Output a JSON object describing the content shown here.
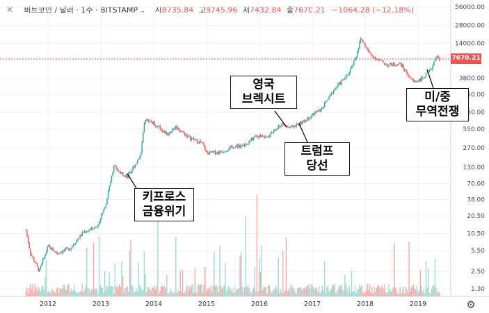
{
  "header": {
    "symbol": "비트코인 / 달러 · 1주 · BITSTAMP",
    "open_label": "시",
    "open": "8735.84",
    "high_label": "고",
    "high": "8745.96",
    "low_label": "저",
    "low": "7432.84",
    "close_label": "종",
    "close": "7670.21",
    "change": "−1064.28 (−12.18%)"
  },
  "colors": {
    "up": "#26a69a",
    "down": "#ef5350",
    "vol_up": "#9fd9d2",
    "vol_down": "#f6a9a7",
    "price_line": "#ef5350"
  },
  "icons": [
    "close-icon",
    "chevron-down-icon",
    "settings-icon"
  ],
  "price_label": "7670.21",
  "annotations": {
    "cyprus": [
      "키프로스",
      "금융위기"
    ],
    "brexit": [
      "영국",
      "브렉시트"
    ],
    "trump": [
      "트럼프",
      "당선"
    ],
    "tradewar": [
      "미/중",
      "무역전쟁"
    ]
  },
  "chart_data": {
    "type": "candlestick",
    "scale": "log",
    "x_labels": [
      "2012",
      "2013",
      "2014",
      "2015",
      "2016",
      "2017",
      "2018",
      "2019"
    ],
    "y_labels": [
      "56000.00",
      "28000.00",
      "14000.00",
      "7670.21",
      "3800.00",
      "2050.00",
      "1050.00",
      "550.00",
      "270.00",
      "130.00",
      "70.00",
      "38.00",
      "20.50",
      "10.50",
      "5.50",
      "2.50",
      "1.30"
    ],
    "price_series": [
      [
        "2011-08",
        12
      ],
      [
        "2011-09",
        5
      ],
      [
        "2011-11",
        2.5
      ],
      [
        "2012-01",
        6.5
      ],
      [
        "2012-03",
        5
      ],
      [
        "2012-06",
        6
      ],
      [
        "2012-09",
        11
      ],
      [
        "2012-12",
        13.5
      ],
      [
        "2013-02",
        30
      ],
      [
        "2013-04",
        140
      ],
      [
        "2013-05",
        110
      ],
      [
        "2013-07",
        90
      ],
      [
        "2013-10",
        200
      ],
      [
        "2013-11",
        800
      ],
      [
        "2013-12",
        750
      ],
      [
        "2014-02",
        600
      ],
      [
        "2014-04",
        450
      ],
      [
        "2014-06",
        600
      ],
      [
        "2014-09",
        400
      ],
      [
        "2014-12",
        320
      ],
      [
        "2015-01",
        220
      ],
      [
        "2015-04",
        230
      ],
      [
        "2015-07",
        280
      ],
      [
        "2015-10",
        300
      ],
      [
        "2015-12",
        430
      ],
      [
        "2016-03",
        420
      ],
      [
        "2016-06",
        650
      ],
      [
        "2016-08",
        580
      ],
      [
        "2016-11",
        720
      ],
      [
        "2017-01",
        950
      ],
      [
        "2017-03",
        1150
      ],
      [
        "2017-06",
        2500
      ],
      [
        "2017-09",
        4200
      ],
      [
        "2017-11",
        9000
      ],
      [
        "2017-12",
        17000
      ],
      [
        "2018-02",
        9500
      ],
      [
        "2018-04",
        7500
      ],
      [
        "2018-06",
        6200
      ],
      [
        "2018-09",
        6500
      ],
      [
        "2018-11",
        4000
      ],
      [
        "2018-12",
        3300
      ],
      [
        "2019-02",
        3700
      ],
      [
        "2019-04",
        5200
      ],
      [
        "2019-05",
        8700
      ],
      [
        "2019-06",
        7670
      ]
    ],
    "last_price": 7670.21
  }
}
